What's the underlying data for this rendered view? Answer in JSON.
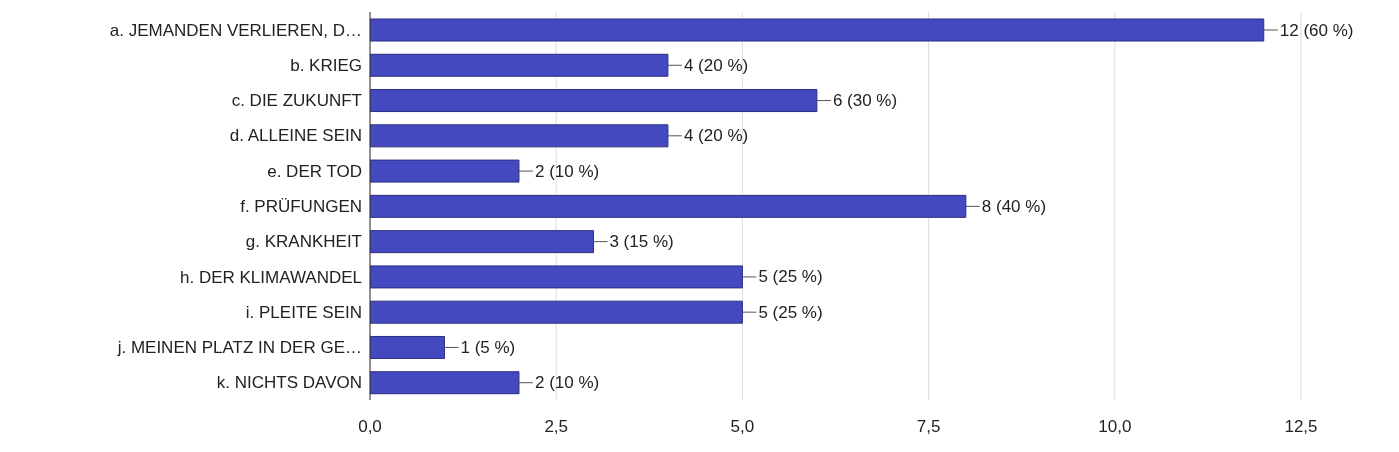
{
  "chart_data": {
    "type": "bar",
    "orientation": "horizontal",
    "categories": [
      "a. JEMANDEN VERLIEREN, D…",
      "b. KRIEG",
      "c. DIE ZUKUNFT",
      "d. ALLEINE SEIN",
      "e. DER TOD",
      "f. PRÜFUNGEN",
      "g. KRANKHEIT",
      "h. DER KLIMAWANDEL",
      "i. PLEITE SEIN",
      "j. MEINEN PLATZ IN DER GE…",
      "k. NICHTS DAVON"
    ],
    "values": [
      12,
      4,
      6,
      4,
      2,
      8,
      3,
      5,
      5,
      1,
      2
    ],
    "value_labels": [
      "12 (60 %)",
      "4 (20 %)",
      "6 (30 %)",
      "4 (20 %)",
      "2 (10 %)",
      "8 (40 %)",
      "3 (15 %)",
      "5 (25 %)",
      "5 (25 %)",
      "1 (5 %)",
      "2 (10 %)"
    ],
    "color": "#4549c0",
    "xlim": [
      0,
      12.5
    ],
    "xticks": [
      {
        "value": 0,
        "label": "0,0"
      },
      {
        "value": 2.5,
        "label": "2,5"
      },
      {
        "value": 5,
        "label": "5,0"
      },
      {
        "value": 7.5,
        "label": "7,5"
      },
      {
        "value": 10,
        "label": "10,0"
      },
      {
        "value": 12.5,
        "label": "12,5"
      }
    ],
    "grid": "x"
  }
}
